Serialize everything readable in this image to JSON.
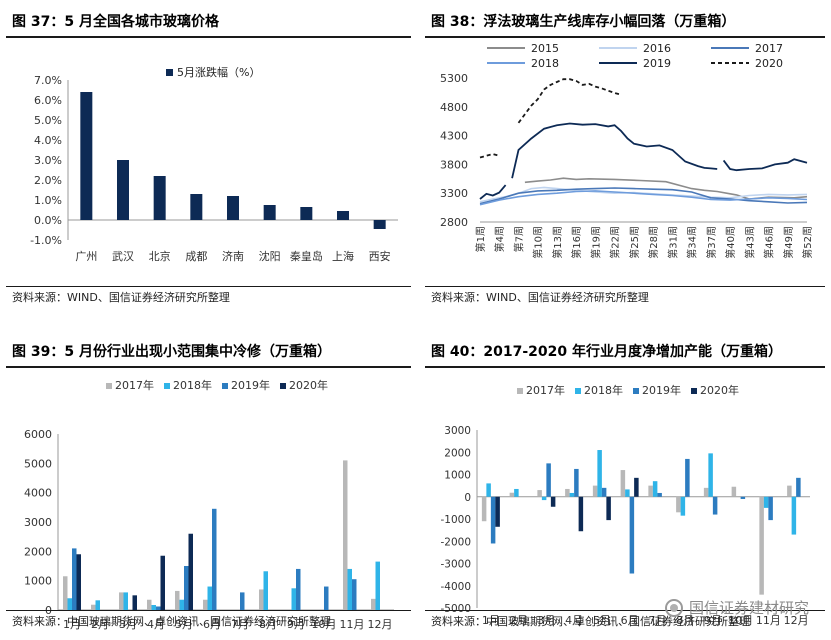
{
  "panels": [
    {
      "title": "图 37：5 月全国各城市玻璃价格",
      "source": "资料来源：WIND、国信证券经济研究所整理"
    },
    {
      "title": "图 38：浮法玻璃生产线库存小幅回落（万重箱）",
      "source": "资料来源：WIND、国信证券经济研究所整理"
    },
    {
      "title": "图 39：5 月份行业出现小范围集中冷修（万重箱）",
      "source": "资料来源：中国玻璃期货网、卓创资讯、国信证券经济研究所整理"
    },
    {
      "title": "图 40：2017-2020 年行业月度净增加产能（万重箱）",
      "source": "资料来源：中国玻璃期货网、卓创资讯、国信证券经济研究所整理"
    }
  ],
  "watermark": "国信证券建材研究",
  "chart_data": [
    {
      "type": "bar",
      "legend_position": "top",
      "series": [
        {
          "name": "5月涨跌幅（%）",
          "color": "#0d2a55"
        }
      ],
      "categories": [
        "广州",
        "武汉",
        "北京",
        "成都",
        "济南",
        "沈阳",
        "秦皇岛",
        "上海",
        "西安"
      ],
      "values": [
        6.4,
        3.0,
        2.2,
        1.3,
        1.2,
        0.75,
        0.65,
        0.45,
        -0.45
      ],
      "ylim": [
        -1.0,
        7.0
      ],
      "yticks": [
        -1.0,
        0.0,
        1.0,
        2.0,
        3.0,
        4.0,
        5.0,
        6.0,
        7.0
      ],
      "ytick_labels": [
        "-1.0%",
        "0.0%",
        "1.0%",
        "2.0%",
        "3.0%",
        "4.0%",
        "5.0%",
        "6.0%",
        "7.0%"
      ]
    },
    {
      "type": "line",
      "legend_position": "top",
      "ylim": [
        2800,
        5300
      ],
      "yticks": [
        2800,
        3300,
        3800,
        4300,
        4800,
        5300
      ],
      "x_labels": [
        "第1周",
        "第4周",
        "第7周",
        "第10周",
        "第13周",
        "第16周",
        "第19周",
        "第22周",
        "第25周",
        "第28周",
        "第31周",
        "第34周",
        "第37周",
        "第40周",
        "第43周",
        "第46周",
        "第49周",
        "第52周"
      ],
      "x_label_weeks": [
        1,
        4,
        7,
        10,
        13,
        16,
        19,
        22,
        25,
        28,
        31,
        34,
        37,
        40,
        43,
        46,
        49,
        52
      ],
      "series": [
        {
          "name": "2015",
          "color": "#8c8c8c",
          "dash": false,
          "x": [
            8,
            10,
            12,
            14,
            15,
            16,
            18,
            22,
            26,
            30,
            34,
            36,
            38,
            40,
            41,
            43,
            46,
            50,
            52
          ],
          "y": [
            3490,
            3510,
            3530,
            3560,
            3550,
            3540,
            3550,
            3540,
            3520,
            3500,
            3380,
            3350,
            3330,
            3290,
            3270,
            3200,
            3230,
            3220,
            3240
          ]
        },
        {
          "name": "2016",
          "color": "#c0d4ef",
          "dash": false,
          "x": [
            1,
            3,
            5,
            7,
            9,
            11,
            13,
            16,
            19,
            22,
            25,
            28,
            31,
            34,
            37,
            40,
            43,
            46,
            49,
            52
          ],
          "y": [
            3150,
            3200,
            3240,
            3300,
            3380,
            3400,
            3380,
            3350,
            3320,
            3300,
            3310,
            3290,
            3270,
            3250,
            3230,
            3220,
            3260,
            3280,
            3270,
            3280
          ]
        },
        {
          "name": "2017",
          "color": "#4a78b8",
          "dash": false,
          "x": [
            1,
            4,
            7,
            10,
            13,
            16,
            19,
            22,
            25,
            28,
            31,
            34,
            37,
            40,
            43,
            46,
            49,
            52
          ],
          "y": [
            3120,
            3200,
            3300,
            3340,
            3350,
            3370,
            3380,
            3390,
            3380,
            3370,
            3360,
            3320,
            3220,
            3200,
            3170,
            3150,
            3130,
            3140
          ]
        },
        {
          "name": "2018",
          "color": "#6e9cdc",
          "dash": false,
          "x": [
            1,
            4,
            7,
            10,
            13,
            16,
            19,
            22,
            25,
            28,
            31,
            34,
            37,
            40,
            43,
            46,
            49,
            52
          ],
          "y": [
            3100,
            3180,
            3240,
            3280,
            3300,
            3330,
            3340,
            3320,
            3300,
            3280,
            3260,
            3230,
            3190,
            3180,
            3200,
            3220,
            3210,
            3190
          ]
        },
        {
          "name": "2019",
          "color": "#0d2a55",
          "dash": false,
          "x": [
            1,
            2,
            3,
            4,
            5,
            null,
            6,
            7,
            9,
            11,
            13,
            15,
            17,
            19,
            21,
            22,
            23,
            24,
            25,
            27,
            29,
            31,
            33,
            35,
            36,
            37,
            38,
            null,
            39,
            40,
            41,
            43,
            45,
            47,
            49,
            50,
            52
          ],
          "y": [
            3200,
            3290,
            3260,
            3310,
            3440,
            null,
            3560,
            4050,
            4250,
            4420,
            4480,
            4510,
            4490,
            4500,
            4460,
            4480,
            4380,
            4250,
            4160,
            4110,
            4130,
            4050,
            3850,
            3770,
            3740,
            3730,
            3720,
            null,
            3870,
            3720,
            3700,
            3720,
            3730,
            3800,
            3830,
            3890,
            3830
          ]
        },
        {
          "name": "2020",
          "color": "#1a1a1a",
          "dash": true,
          "x": [
            1,
            3,
            4,
            null,
            7,
            9,
            10,
            11,
            12,
            13,
            14,
            15,
            16,
            17,
            18,
            19,
            20,
            21,
            22,
            23
          ],
          "y": [
            3920,
            3980,
            3950,
            null,
            4520,
            4820,
            4930,
            5100,
            5180,
            5230,
            5280,
            5280,
            5250,
            5180,
            5200,
            5150,
            5120,
            5080,
            5040,
            5010
          ]
        }
      ]
    },
    {
      "type": "bar",
      "legend_position": "top",
      "ylim": [
        0,
        6000
      ],
      "yticks": [
        0,
        1000,
        2000,
        3000,
        4000,
        5000,
        6000
      ],
      "categories": [
        "1月",
        "2月",
        "3月",
        "4月",
        "5月",
        "6月",
        "7月",
        "8月",
        "9月",
        "10月",
        "11月",
        "12月"
      ],
      "series": [
        {
          "name": "2017年",
          "color": "#b8b8b8",
          "values": [
            1150,
            180,
            600,
            350,
            650,
            350,
            0,
            700,
            0,
            0,
            5100,
            380
          ]
        },
        {
          "name": "2018年",
          "color": "#2fb4e8",
          "values": [
            400,
            330,
            600,
            170,
            350,
            800,
            0,
            1320,
            740,
            0,
            1400,
            1650
          ]
        },
        {
          "name": "2019年",
          "color": "#2c7cc0",
          "values": [
            2100,
            0,
            0,
            120,
            1500,
            3450,
            600,
            0,
            1400,
            800,
            1050,
            0
          ]
        },
        {
          "name": "2020年",
          "color": "#0d2a55",
          "values": [
            1900,
            0,
            500,
            1850,
            2600,
            0,
            0,
            0,
            0,
            0,
            0,
            0
          ]
        }
      ]
    },
    {
      "type": "bar",
      "legend_position": "top",
      "ylim": [
        -5000,
        3000
      ],
      "yticks": [
        -5000,
        -4000,
        -3000,
        -2000,
        -1000,
        0,
        1000,
        2000,
        3000
      ],
      "categories": [
        "1月",
        "2月",
        "3月",
        "4月",
        "5月",
        "6月",
        "7月",
        "8月",
        "9月",
        "10月",
        "11月",
        "12月"
      ],
      "series": [
        {
          "name": "2017年",
          "color": "#b8b8b8",
          "values": [
            -1100,
            180,
            300,
            350,
            500,
            1200,
            500,
            -700,
            400,
            450,
            -4400,
            500
          ]
        },
        {
          "name": "2018年",
          "color": "#2fb4e8",
          "values": [
            600,
            350,
            -150,
            170,
            2100,
            330,
            700,
            -850,
            1950,
            0,
            -500,
            -1700
          ]
        },
        {
          "name": "2019年",
          "color": "#2c7cc0",
          "values": [
            -2100,
            0,
            1500,
            1250,
            400,
            -3450,
            170,
            1700,
            -800,
            -100,
            -1050,
            850
          ]
        },
        {
          "name": "2020年",
          "color": "#0d2a55",
          "values": [
            -1350,
            0,
            -450,
            -1550,
            -1050,
            850,
            0,
            0,
            0,
            0,
            0,
            0
          ]
        }
      ]
    }
  ]
}
